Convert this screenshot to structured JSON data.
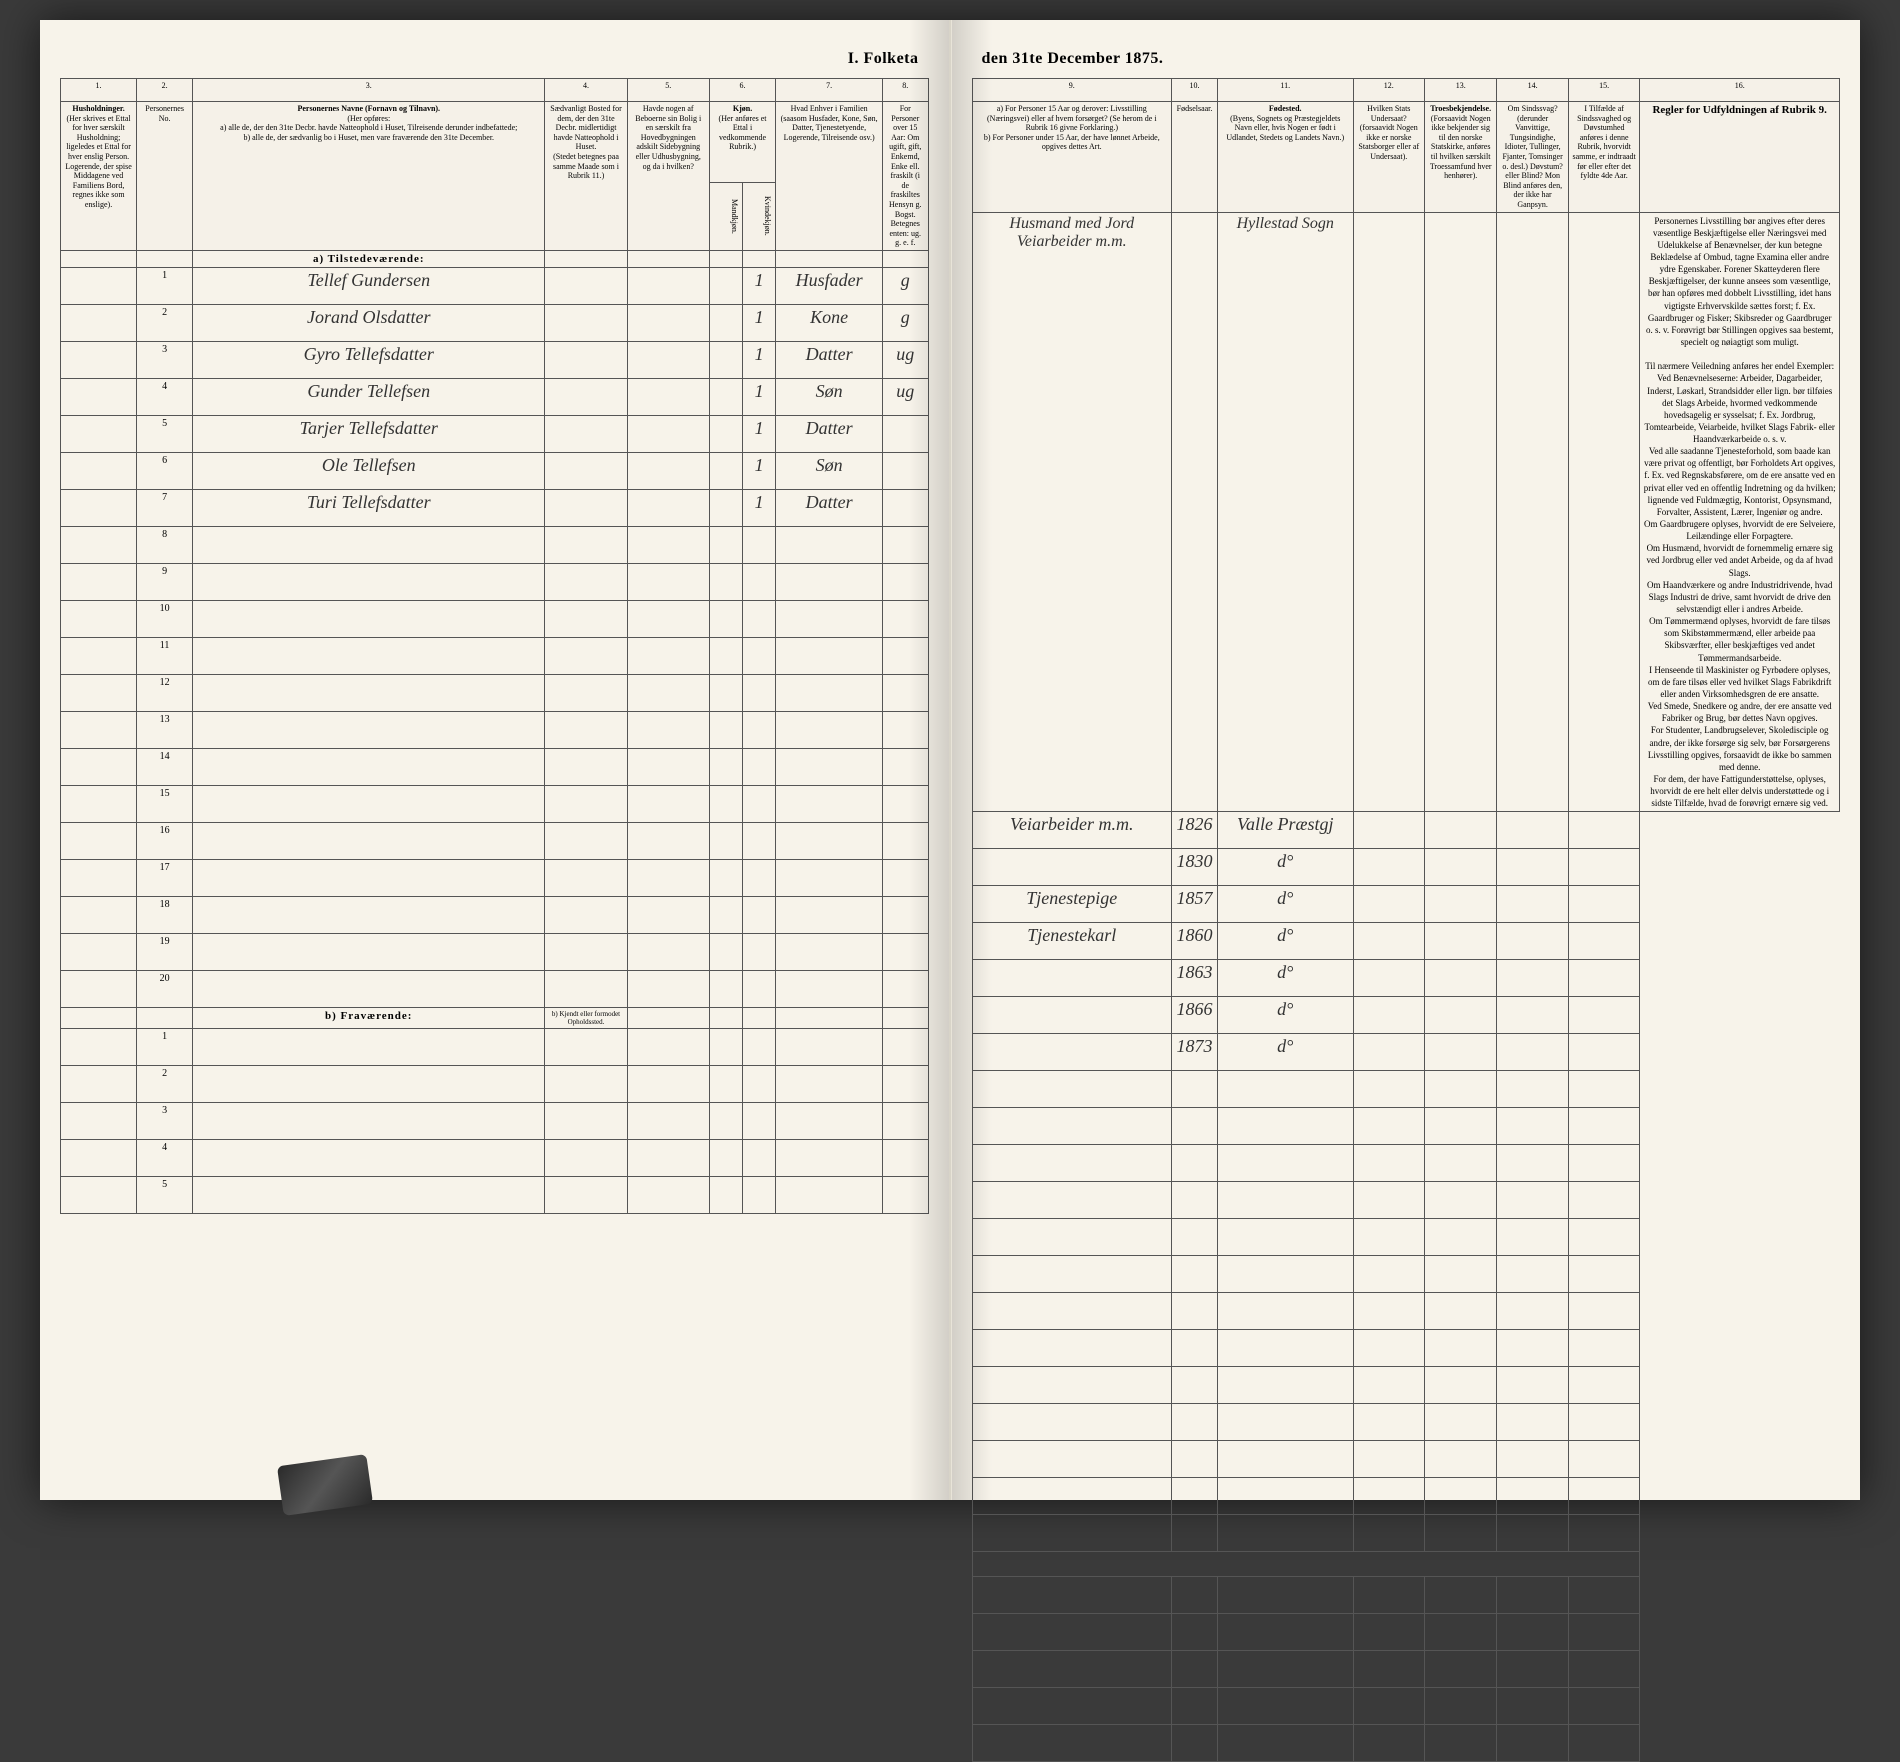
{
  "title_left": "I. Folketa",
  "title_right": "den 31te December 1875.",
  "columns": {
    "c1": "1.",
    "c2": "2.",
    "c3": "3.",
    "c4": "4.",
    "c5": "5.",
    "c6": "6.",
    "c7": "7.",
    "c8": "8.",
    "c9": "9.",
    "c10": "10.",
    "c11": "11.",
    "c12": "12.",
    "c13": "13.",
    "c14": "14.",
    "c15": "15.",
    "c16": "16."
  },
  "headers": {
    "h1": "Husholdninger.",
    "h1_sub": "(Her skrives et Ettal for hver særskilt Husholdning; ligeledes et Ettal for hver enslig Person.",
    "h1_note": "Logerende, der spise Middagene ved Familiens Bord, regnes ikke som enslige).",
    "h2": "Personernes No.",
    "h3": "Personernes Navne (Fornavn og Tilnavn).",
    "h3_sub": "(Her opføres:",
    "h3_a": "a) alle de, der den 31te Decbr. havde Natteophold i Huset, Tilreisende derunder indbefattede;",
    "h3_b": "b) alle de, der sædvanlig bo i Huset, men vare fraværende den 31te December.",
    "h4": "Sædvanligt Bosted for dem, der den 31te Decbr. midlertidigt havde Natteophold i Huset.",
    "h4_sub": "(Stedet betegnes paa samme Maade som i Rubrik 11.)",
    "h5": "Havde nogen af Beboerne sin Bolig i en særskilt fra Hovedbygningen adskilt Sidebygning eller Udhusbygning, og da i hvilken?",
    "h6": "Kjøn.",
    "h6_sub": "(Her anføres et Ettal i vedkommende Rubrik.)",
    "h6a": "Mandkjøn.",
    "h6b": "Kvindekjøn.",
    "h7": "Hvad Enhver i Familien (saasom Husfader, Kone, Søn, Datter, Tjenestetyende, Logerende, Tilreisende osv.)",
    "h8": "For Personer over 15 Aar: Om ugift, gift, Enkemd, Enke ell. fraskilt (i de fraskiltes Hensyn g. Bogst. Betegnes enten: ug. g. e. f.",
    "h9": "a) For Personer 15 Aar og derover: Livsstilling (Næringsvei) eller af hvem forsørget? (Se herom de i Rubrik 16 givne Forklaring.)",
    "h9_b": "b) For Personer under 15 Aar, der have lønnet Arbeide, opgives dettes Art.",
    "h10": "Fødselsaar.",
    "h11": "Fødested.",
    "h11_sub": "(Byens, Sognets og Præstegjeldets Navn eller, hvis Nogen er født i Udlandet, Stedets og Landets Navn.)",
    "h12": "Hvilken Stats Undersaat?",
    "h12_sub": "(forsaavidt Nogen ikke er norske Statsborger eller af Undersaat).",
    "h13": "Troesbekjendelse.",
    "h13_sub": "(Forsaavidt Nogen ikke bekjender sig til den norske Statskirke, anføres til hvilken særskilt Troessamfund hver henhører).",
    "h14": "Om Sindssvag? (derunder Vanvittige, Tungsindighe, Idioter, Tullinger, Fjanter, Tomsinger o. desl.) Døvstum? eller Blind? Mon Blind anføres den, der ikke har Ganpsyn.",
    "h15": "I Tilfælde af Sindssvaghed og Døvstumhed anføres i denne Rubrik, hvorvidt samme, er indtraadt før eller efter det fyldte 4de Aar.",
    "h16": "Regler for Udfyldningen af Rubrik 9."
  },
  "section_a": "a) Tilstedeværende:",
  "section_b": "b) Fraværende:",
  "section_b_col4": "b) Kjendt eller formodet Opholdssted.",
  "birthplace_header": "Hyllestad Sogn",
  "rows": [
    {
      "n": "1",
      "name": "Tellef Gundersen",
      "c6": "1",
      "c7": "Husfader",
      "c8": "g",
      "c9": "Husmand med Jord Veiarbeider m.m.",
      "c10": "1826",
      "c11": "Valle Præstgj"
    },
    {
      "n": "2",
      "name": "Jorand Olsdatter",
      "c6": "1",
      "c7": "Kone",
      "c8": "g",
      "c9": "",
      "c10": "1830",
      "c11": "d°"
    },
    {
      "n": "3",
      "name": "Gyro Tellefsdatter",
      "c6": "1",
      "c7": "Datter",
      "c8": "ug",
      "c9": "Tjenestepige",
      "c10": "1857",
      "c11": "d°"
    },
    {
      "n": "4",
      "name": "Gunder Tellefsen",
      "c6": "1",
      "c7": "Søn",
      "c8": "ug",
      "c9": "Tjenestekarl",
      "c10": "1860",
      "c11": "d°"
    },
    {
      "n": "5",
      "name": "Tarjer Tellefsdatter",
      "c6": "1",
      "c7": "Datter",
      "c8": "",
      "c9": "",
      "c10": "1863",
      "c11": "d°"
    },
    {
      "n": "6",
      "name": "Ole Tellefsen",
      "c6": "1",
      "c7": "Søn",
      "c8": "",
      "c9": "",
      "c10": "1866",
      "c11": "d°"
    },
    {
      "n": "7",
      "name": "Turi Tellefsdatter",
      "c6": "1",
      "c7": "Datter",
      "c8": "",
      "c9": "",
      "c10": "1873",
      "c11": "d°"
    }
  ],
  "empty_rows_a": [
    "8",
    "9",
    "10",
    "11",
    "12",
    "13",
    "14",
    "15",
    "16",
    "17",
    "18",
    "19",
    "20"
  ],
  "empty_rows_b": [
    "1",
    "2",
    "3",
    "4",
    "5"
  ],
  "instructions": {
    "p1": "Personernes Livsstilling bør angives efter deres væsentlige Beskjæftigelse eller Næringsvei med Udelukkelse af Benævnelser, der kun betegne Beklædelse af Ombud, tagne Examina eller andre ydre Egenskaber. Forener Skatteyderen flere Beskjæftigelser, der kunne ansees som væsentlige, bør han opføres med dobbelt Livsstilling, idet hans vigtigste Erhvervskilde sættes forst; f. Ex. Gaardbruger og Fisker; Skibsreder og Gaardbruger o. s. v. Forøvrigt bør Stillingen opgives saa bestemt, specielt og nøiagtigt som muligt.",
    "p2": "Til nærmere Veiledning anføres her endel Exempler:",
    "p3": "Ved Benævnelseserne: Arbeider, Dagarbeider, Inderst, Løskarl, Strandsidder eller lign. bør tilføies det Slags Arbeide, hvormed vedkommende hovedsagelig er sysselsat; f. Ex. Jordbrug, Tomtearbeide, Veiarbeide, hvilket Slags Fabrik- eller Haandværkarbeide o. s. v.",
    "p4": "Ved alle saadanne Tjenesteforhold, som baade kan være privat og offentligt, bør Forholdets Art opgives, f. Ex. ved Regnskabsførere, om de ere ansatte ved en privat eller ved en offentlig Indretning og da hvilken; lignende ved Fuldmægtig, Kontorist, Opsynsmand, Forvalter, Assistent, Lærer, Ingeniør og andre.",
    "p5": "Om Gaardbrugere oplyses, hvorvidt de ere Selveiere, Leilændinge eller Forpagtere.",
    "p6": "Om Husmænd, hvorvidt de fornemmelig ernære sig ved Jordbrug eller ved andet Arbeide, og da af hvad Slags.",
    "p7": "Om Haandværkere og andre Industridrivende, hvad Slags Industri de drive, samt hvorvidt de drive den selvstændigt eller i andres Arbeide.",
    "p8": "Om Tømmermænd oplyses, hvorvidt de fare tilsøs som Skibstømmermænd, eller arbeide paa Skibsværfter, eller beskjæftiges ved andet Tømmermandsarbeide.",
    "p9": "I Henseende til Maskinister og Fyrbødere oplyses, om de fare tilsøs eller ved hvilket Slags Fabrikdrift eller anden Virksomhedsgren de ere ansatte.",
    "p10": "Ved Smede, Snedkere og andre, der ere ansatte ved Fabriker og Brug, bør dettes Navn opgives.",
    "p11": "For Studenter, Landbrugselever, Skoledisciple og andre, der ikke forsørge sig selv, bør Forsørgerens Livsstilling opgives, forsaavidt de ikke bo sammen med denne.",
    "p12": "For dem, der have Fattigunderstøttelse, oplyses, hvorvidt de ere helt eller delvis understøttede og i sidste Tilfælde, hvad de forøvrigt ernære sig ved."
  },
  "colors": {
    "paper": "#f7f3ea",
    "line": "#555555",
    "ink": "#333333",
    "background": "#3a3a3a"
  }
}
